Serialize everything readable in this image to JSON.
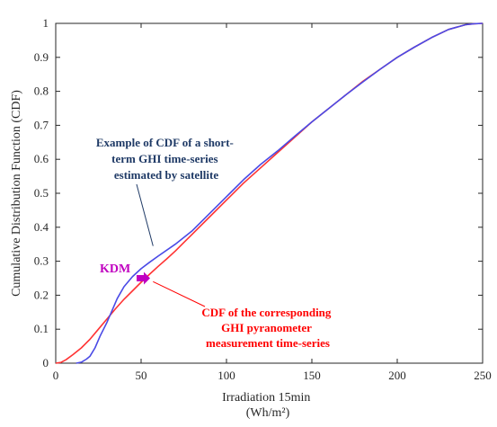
{
  "chart_data": {
    "type": "line",
    "title": "",
    "xlabel": [
      "Irradiation 15min",
      "(Wh/m²)"
    ],
    "ylabel": "Cumulative Distribution Function (CDF)",
    "xlim": [
      0,
      250
    ],
    "ylim": [
      0,
      1
    ],
    "xticks": [
      0,
      50,
      100,
      150,
      200,
      250
    ],
    "yticks": [
      0,
      0.1,
      0.2,
      0.3,
      0.4,
      0.5,
      0.6,
      0.7,
      0.8,
      0.9,
      1
    ],
    "xtick_labels": [
      "0",
      "50",
      "100",
      "150",
      "200",
      "250"
    ],
    "ytick_labels": [
      "0",
      "0.1",
      "0.2",
      "0.3",
      "0.4",
      "0.5",
      "0.6",
      "0.7",
      "0.8",
      "0.9",
      "1"
    ],
    "grid": false,
    "series": [
      {
        "name": "",
        "color": "#ff3333",
        "x": [
          0,
          3,
          6,
          10,
          15,
          20,
          25,
          30,
          35,
          40,
          45,
          50,
          55,
          60,
          65,
          70,
          75,
          80,
          90,
          100,
          110,
          120,
          130,
          140,
          150,
          160,
          170,
          180,
          190,
          200,
          210,
          220,
          230,
          240,
          245,
          250
        ],
        "y": [
          0,
          0.002,
          0.01,
          0.025,
          0.045,
          0.07,
          0.1,
          0.13,
          0.16,
          0.188,
          0.213,
          0.238,
          0.262,
          0.285,
          0.307,
          0.33,
          0.355,
          0.38,
          0.43,
          0.48,
          0.53,
          0.575,
          0.62,
          0.665,
          0.71,
          0.75,
          0.79,
          0.83,
          0.865,
          0.9,
          0.93,
          0.958,
          0.982,
          0.996,
          0.999,
          1
        ]
      },
      {
        "name": "",
        "color": "#4a4ae6",
        "x": [
          12,
          15,
          18,
          20,
          23,
          26,
          30,
          33,
          36,
          40,
          45,
          50,
          55,
          60,
          70,
          80,
          90,
          100,
          110,
          120,
          130,
          140,
          150,
          160,
          170,
          180,
          190,
          200,
          210,
          220,
          230,
          240,
          245,
          250
        ],
        "y": [
          0,
          0.003,
          0.012,
          0.02,
          0.045,
          0.08,
          0.12,
          0.155,
          0.19,
          0.225,
          0.255,
          0.278,
          0.297,
          0.315,
          0.35,
          0.39,
          0.44,
          0.49,
          0.54,
          0.585,
          0.625,
          0.668,
          0.71,
          0.75,
          0.79,
          0.828,
          0.865,
          0.9,
          0.93,
          0.958,
          0.982,
          0.996,
          0.999,
          1
        ]
      }
    ],
    "annotations": [
      {
        "text_lines": [
          "Example of CDF of a short-",
          "term GHI time-series",
          "estimated by satellite"
        ],
        "color": "#1f3a66",
        "target": [
          57,
          0.345
        ]
      },
      {
        "text_lines": [
          "CDF of the corresponding",
          "GHI pyranometer",
          "measurement time-series"
        ],
        "color": "#ff0000",
        "target": [
          57,
          0.24
        ]
      },
      {
        "text": "KDM",
        "color": "#c000c0",
        "arrow_at": [
          50,
          0.25
        ]
      }
    ]
  }
}
